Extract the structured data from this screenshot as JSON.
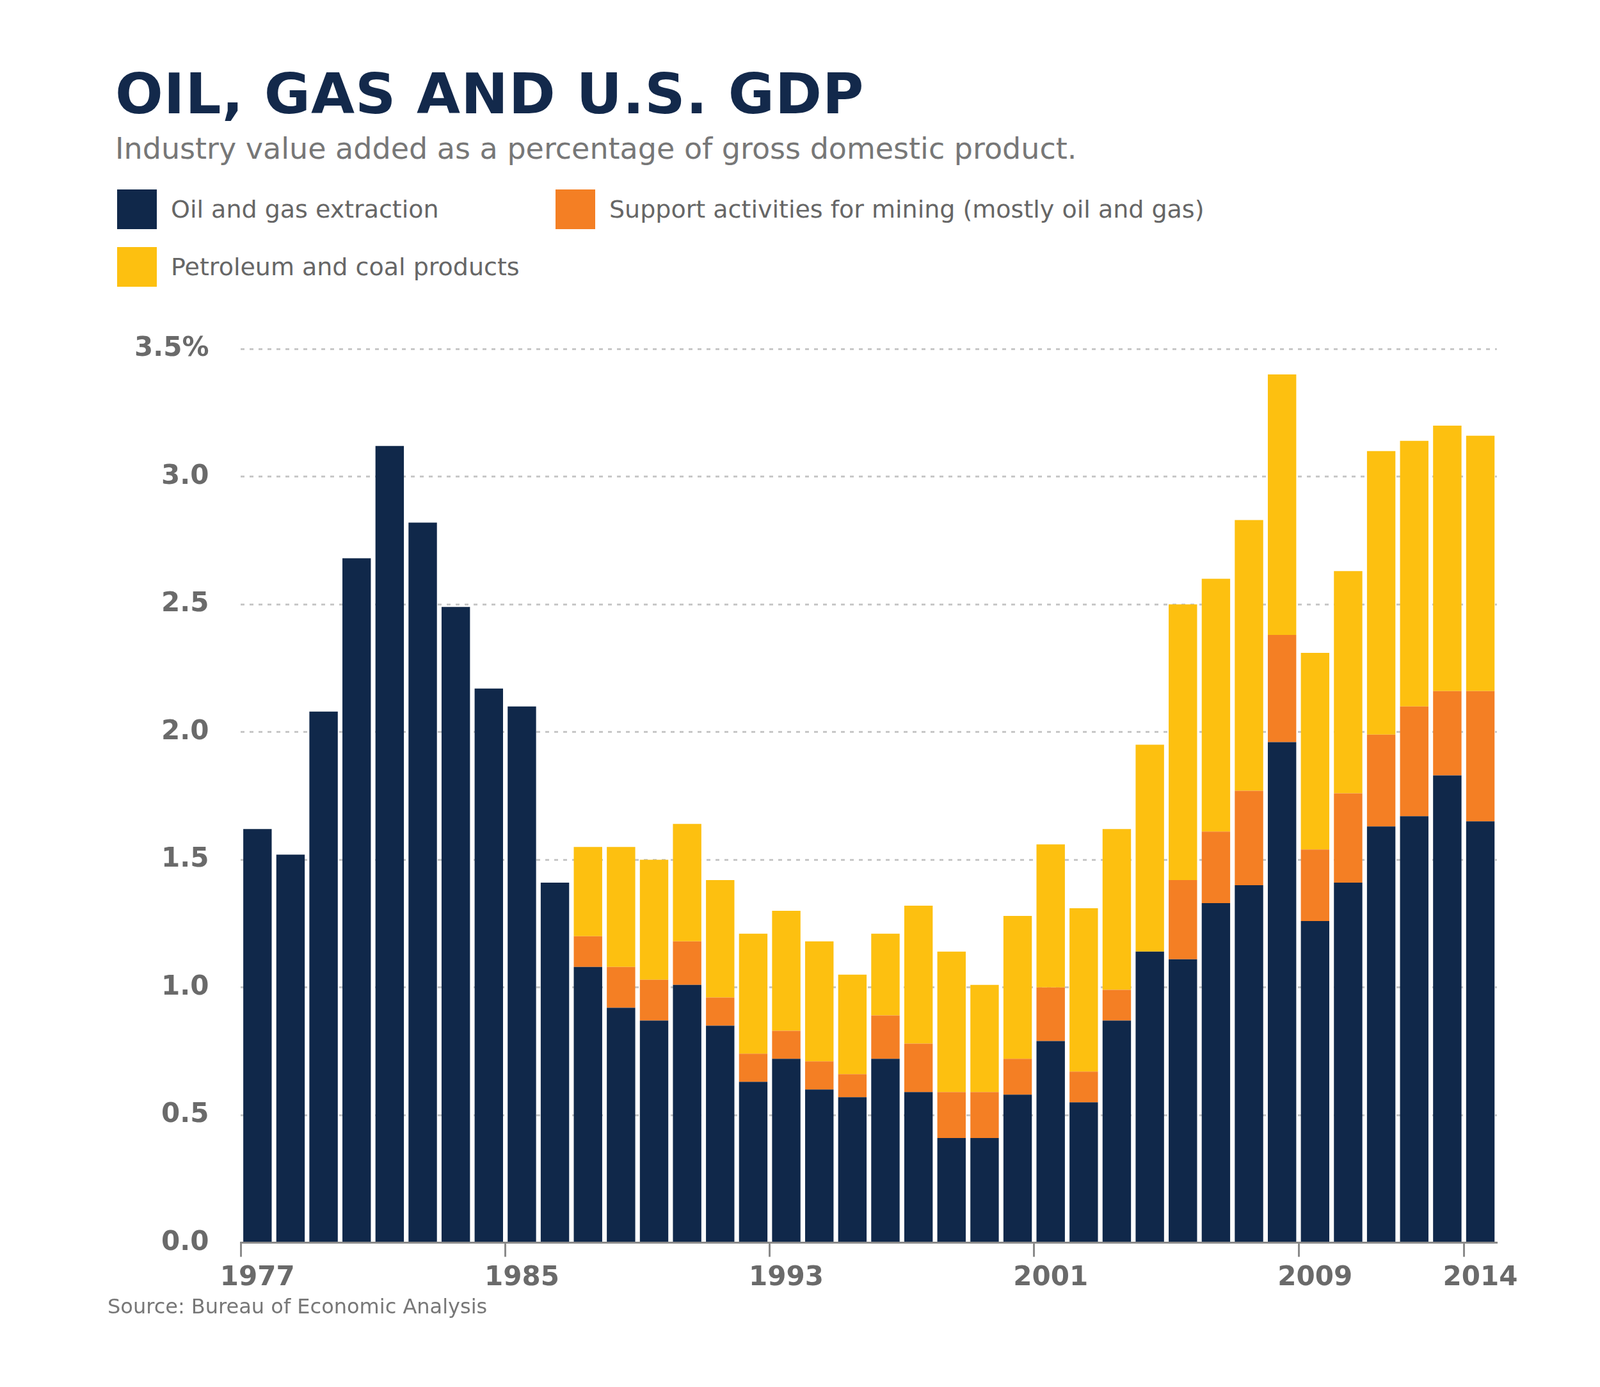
{
  "chart_data": {
    "type": "bar",
    "title": "OIL, GAS AND U.S. GDP",
    "subtitle": "Industry value added as a percentage of gross domestic product.",
    "source": "Source: Bureau of Economic Analysis",
    "stacked": true,
    "grid": true,
    "categories": [
      "1977",
      null,
      null,
      null,
      null,
      null,
      null,
      null,
      "1985",
      null,
      null,
      null,
      null,
      null,
      null,
      null,
      "1993",
      null,
      null,
      null,
      null,
      null,
      null,
      null,
      "2001",
      null,
      null,
      null,
      null,
      null,
      null,
      null,
      "2009",
      null,
      null,
      null,
      null,
      "2014"
    ],
    "series": [
      {
        "name": "Oil and gas extraction",
        "color": "#10284a",
        "values": [
          1.62,
          1.52,
          2.08,
          2.68,
          3.12,
          2.82,
          2.49,
          2.17,
          2.1,
          1.41,
          1.08,
          0.92,
          0.87,
          1.01,
          0.85,
          0.63,
          0.72,
          0.6,
          0.57,
          0.72,
          0.59,
          0.41,
          0.41,
          0.58,
          0.79,
          0.55,
          0.87,
          1.14,
          1.11,
          1.33,
          1.4,
          1.96,
          1.26,
          1.41,
          1.63,
          1.67,
          1.83,
          1.65
        ]
      },
      {
        "name": "Support activities for mining (mostly oil and gas)",
        "color": "#f47f24",
        "values": [
          null,
          null,
          null,
          null,
          null,
          null,
          null,
          null,
          null,
          null,
          0.12,
          0.16,
          0.16,
          0.17,
          0.11,
          0.11,
          0.11,
          0.11,
          0.09,
          0.17,
          0.19,
          0.18,
          0.18,
          0.14,
          0.21,
          0.12,
          0.12,
          0,
          0.31,
          0.28,
          0.37,
          0.42,
          0.28,
          0.35,
          0.36,
          0.43,
          0.33,
          0.51
        ]
      },
      {
        "name": "Petroleum and coal products",
        "color": "#fdc010",
        "values": [
          null,
          null,
          null,
          null,
          null,
          null,
          null,
          null,
          null,
          null,
          0.35,
          0.47,
          0.47,
          0.46,
          0.46,
          0.47,
          0.47,
          0.47,
          0.39,
          0.32,
          0.54,
          0.55,
          0.42,
          0.56,
          0.56,
          0.64,
          0.63,
          0.81,
          1.08,
          0.99,
          1.06,
          1.02,
          0.77,
          0.87,
          1.11,
          1.04,
          1.04,
          1.0
        ]
      }
    ],
    "ylim": [
      0,
      3.5
    ],
    "yticks": [
      {
        "value": 0,
        "label": "0.0"
      },
      0.5,
      {
        "value": 1,
        "label": "1.0"
      },
      1.5,
      {
        "value": 2,
        "label": "2.0"
      },
      2.5,
      {
        "value": 3,
        "label": "3.0"
      },
      {
        "value": 3.5,
        "label": "3.5%"
      }
    ]
  }
}
